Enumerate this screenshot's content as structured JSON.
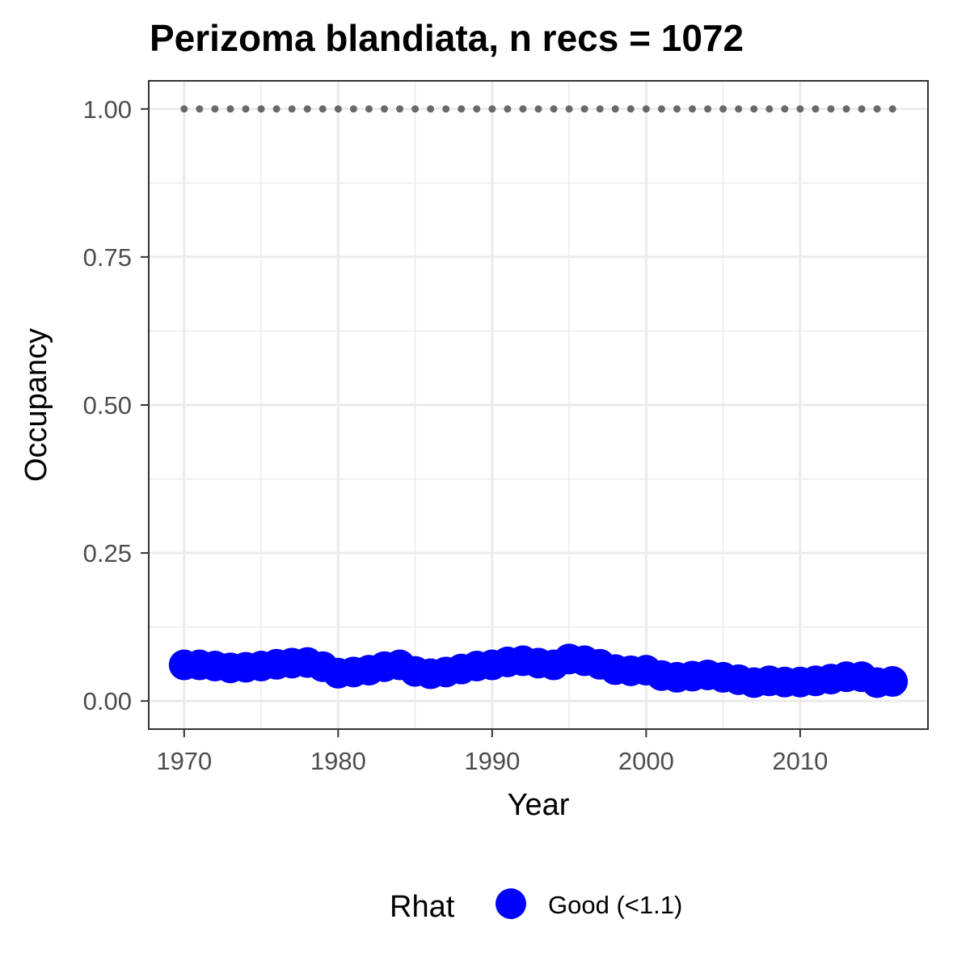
{
  "chart_data": {
    "type": "scatter",
    "title": "Perizoma blandiata, n recs = 1072",
    "xlabel": "Year",
    "ylabel": "Occupancy",
    "xlim": [
      1967.7,
      2018.3
    ],
    "ylim": [
      -0.0475,
      1.0475
    ],
    "x_ticks": [
      1970,
      1980,
      1990,
      2000,
      2010
    ],
    "x_tick_labels": [
      "1970",
      "1980",
      "1990",
      "2000",
      "2010"
    ],
    "y_ticks": [
      0.0,
      0.25,
      0.5,
      0.75,
      1.0
    ],
    "y_tick_labels": [
      "0.00",
      "0.25",
      "0.50",
      "0.75",
      "1.00"
    ],
    "grid": true,
    "legend": {
      "title": "Rhat",
      "position": "bottom",
      "entries": [
        {
          "label": "Good (<1.1)",
          "color": "#0000ff"
        }
      ]
    },
    "series": [
      {
        "name": "Good (<1.1)",
        "color": "#0000ff",
        "x": [
          1970,
          1971,
          1972,
          1973,
          1974,
          1975,
          1976,
          1977,
          1978,
          1979,
          1980,
          1981,
          1982,
          1983,
          1984,
          1985,
          1986,
          1987,
          1988,
          1989,
          1990,
          1991,
          1992,
          1993,
          1994,
          1995,
          1996,
          1997,
          1998,
          1999,
          2000,
          2001,
          2002,
          2003,
          2004,
          2005,
          2006,
          2007,
          2008,
          2009,
          2010,
          2011,
          2012,
          2013,
          2014,
          2015,
          2016
        ],
        "y": [
          0.061,
          0.061,
          0.059,
          0.056,
          0.057,
          0.059,
          0.062,
          0.064,
          0.065,
          0.058,
          0.047,
          0.049,
          0.052,
          0.058,
          0.061,
          0.05,
          0.046,
          0.049,
          0.054,
          0.059,
          0.061,
          0.066,
          0.068,
          0.064,
          0.061,
          0.071,
          0.068,
          0.062,
          0.053,
          0.051,
          0.052,
          0.043,
          0.04,
          0.042,
          0.044,
          0.04,
          0.036,
          0.031,
          0.034,
          0.032,
          0.032,
          0.034,
          0.037,
          0.041,
          0.041,
          0.031,
          0.033
        ]
      },
      {
        "name": "",
        "color": "#696969",
        "style": "dotted-markers",
        "x": [
          1970,
          1971,
          1972,
          1973,
          1974,
          1975,
          1976,
          1977,
          1978,
          1979,
          1980,
          1981,
          1982,
          1983,
          1984,
          1985,
          1986,
          1987,
          1988,
          1989,
          1990,
          1991,
          1992,
          1993,
          1994,
          1995,
          1996,
          1997,
          1998,
          1999,
          2000,
          2001,
          2002,
          2003,
          2004,
          2005,
          2006,
          2007,
          2008,
          2009,
          2010,
          2011,
          2012,
          2013,
          2014,
          2015,
          2016
        ],
        "y": [
          1.0,
          1.0,
          1.0,
          1.0,
          1.0,
          1.0,
          1.0,
          1.0,
          1.0,
          1.0,
          1.0,
          1.0,
          1.0,
          1.0,
          1.0,
          1.0,
          1.0,
          1.0,
          1.0,
          1.0,
          1.0,
          1.0,
          1.0,
          1.0,
          1.0,
          1.0,
          1.0,
          1.0,
          1.0,
          1.0,
          1.0,
          1.0,
          1.0,
          1.0,
          1.0,
          1.0,
          1.0,
          1.0,
          1.0,
          1.0,
          1.0,
          1.0,
          1.0,
          1.0,
          1.0,
          1.0,
          1.0
        ]
      }
    ]
  }
}
